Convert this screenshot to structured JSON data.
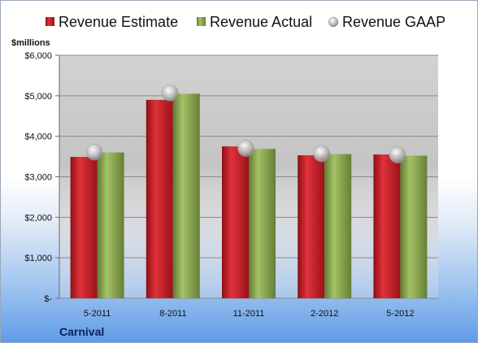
{
  "chart_data": {
    "type": "bar",
    "company": "Carnival",
    "unit_label": "$millions",
    "categories": [
      "5-2011",
      "8-2011",
      "11-2011",
      "2-2012",
      "5-2012"
    ],
    "series": [
      {
        "name": "Revenue Estimate",
        "kind": "bar",
        "color": "#d0202a",
        "values": [
          3490,
          4900,
          3750,
          3530,
          3550
        ]
      },
      {
        "name": "Revenue Actual",
        "kind": "bar",
        "color": "#8fac55",
        "values": [
          3600,
          5050,
          3690,
          3560,
          3520
        ]
      },
      {
        "name": "Revenue GAAP",
        "kind": "marker",
        "color": "#b8b8b8",
        "values": [
          3610,
          5070,
          3700,
          3570,
          3540
        ]
      }
    ],
    "y_ticks": [
      {
        "value": 0,
        "label": "$-"
      },
      {
        "value": 1000,
        "label": "$1,000"
      },
      {
        "value": 2000,
        "label": "$2,000"
      },
      {
        "value": 3000,
        "label": "$3,000"
      },
      {
        "value": 4000,
        "label": "$4,000"
      },
      {
        "value": 5000,
        "label": "$5,000"
      },
      {
        "value": 6000,
        "label": "$6,000"
      }
    ],
    "ylim": [
      0,
      6000
    ],
    "grid": true,
    "legend_position": "top"
  }
}
